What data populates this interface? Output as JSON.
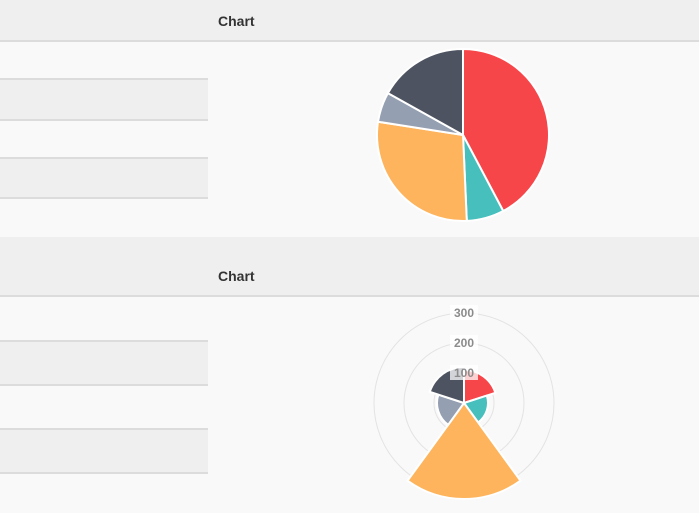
{
  "panels": [
    {
      "header_title": "Chart"
    },
    {
      "header_title": "Chart"
    }
  ],
  "chart_data": [
    {
      "type": "pie",
      "title": "",
      "values": [
        300,
        50,
        200,
        40,
        120
      ],
      "colors": [
        "#F7464A",
        "#46BFBD",
        "#FDB45C",
        "#949FB1",
        "#4D5360"
      ]
    },
    {
      "type": "polarArea",
      "title": "",
      "values": [
        110,
        80,
        320,
        90,
        120
      ],
      "colors": [
        "#F7464A",
        "#46BFBD",
        "#FDB45C",
        "#949FB1",
        "#4D5360"
      ],
      "scale": {
        "max": 300,
        "ticks": [
          100,
          200,
          300
        ]
      }
    }
  ]
}
